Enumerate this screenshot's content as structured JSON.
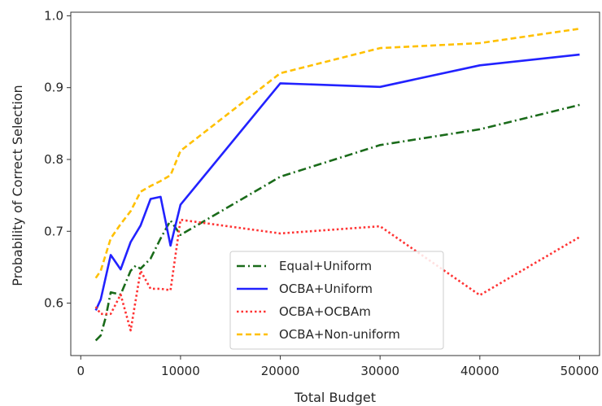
{
  "chart_data": {
    "type": "line",
    "xlabel": "Total Budget",
    "ylabel": "Probability of Correct Selection",
    "xlim": [
      -1000,
      52000
    ],
    "ylim": [
      0.527,
      1.005
    ],
    "xticks": [
      0,
      10000,
      20000,
      30000,
      40000,
      50000
    ],
    "xtick_labels": [
      "0",
      "10000",
      "20000",
      "30000",
      "40000",
      "50000"
    ],
    "yticks": [
      0.6,
      0.7,
      0.8,
      0.9,
      1.0
    ],
    "ytick_labels": [
      "0.6",
      "0.7",
      "0.8",
      "0.9",
      "1.0"
    ],
    "grid": false,
    "legend_position": "lower-center",
    "series": [
      {
        "name": "Equal+Uniform",
        "color": "#1a6b1a",
        "dash": "dashdot",
        "x": [
          1500,
          2000,
          2500,
          3000,
          4000,
          5000,
          5500,
          6000,
          7000,
          8000,
          9000,
          10000,
          20000,
          30000,
          40000,
          50000
        ],
        "y": [
          0.548,
          0.555,
          0.58,
          0.615,
          0.612,
          0.645,
          0.652,
          0.648,
          0.662,
          0.69,
          0.715,
          0.695,
          0.776,
          0.82,
          0.842,
          0.876
        ]
      },
      {
        "name": "OCBA+Uniform",
        "color": "#2222ff",
        "dash": "solid",
        "x": [
          1500,
          2000,
          3000,
          4000,
          5000,
          6000,
          7000,
          8000,
          9000,
          10000,
          20000,
          30000,
          40000,
          50000
        ],
        "y": [
          0.59,
          0.605,
          0.667,
          0.647,
          0.685,
          0.708,
          0.745,
          0.748,
          0.68,
          0.737,
          0.906,
          0.901,
          0.931,
          0.946
        ]
      },
      {
        "name": "OCBA+OCBAm",
        "color": "#ff3333",
        "dash": "dotted",
        "x": [
          1500,
          2000,
          3000,
          4000,
          5000,
          6000,
          7000,
          8000,
          9000,
          10000,
          20000,
          30000,
          40000,
          50000
        ],
        "y": [
          0.595,
          0.585,
          0.585,
          0.612,
          0.562,
          0.645,
          0.62,
          0.62,
          0.618,
          0.716,
          0.697,
          0.707,
          0.611,
          0.692
        ]
      },
      {
        "name": "OCBA+Non-uniform",
        "color": "#ffc000",
        "dash": "dashed",
        "x": [
          1500,
          2000,
          3000,
          4000,
          5000,
          6000,
          7000,
          8000,
          9000,
          10000,
          20000,
          30000,
          40000,
          50000
        ],
        "y": [
          0.635,
          0.645,
          0.69,
          0.71,
          0.728,
          0.755,
          0.763,
          0.77,
          0.778,
          0.812,
          0.92,
          0.955,
          0.962,
          0.982
        ]
      }
    ]
  }
}
